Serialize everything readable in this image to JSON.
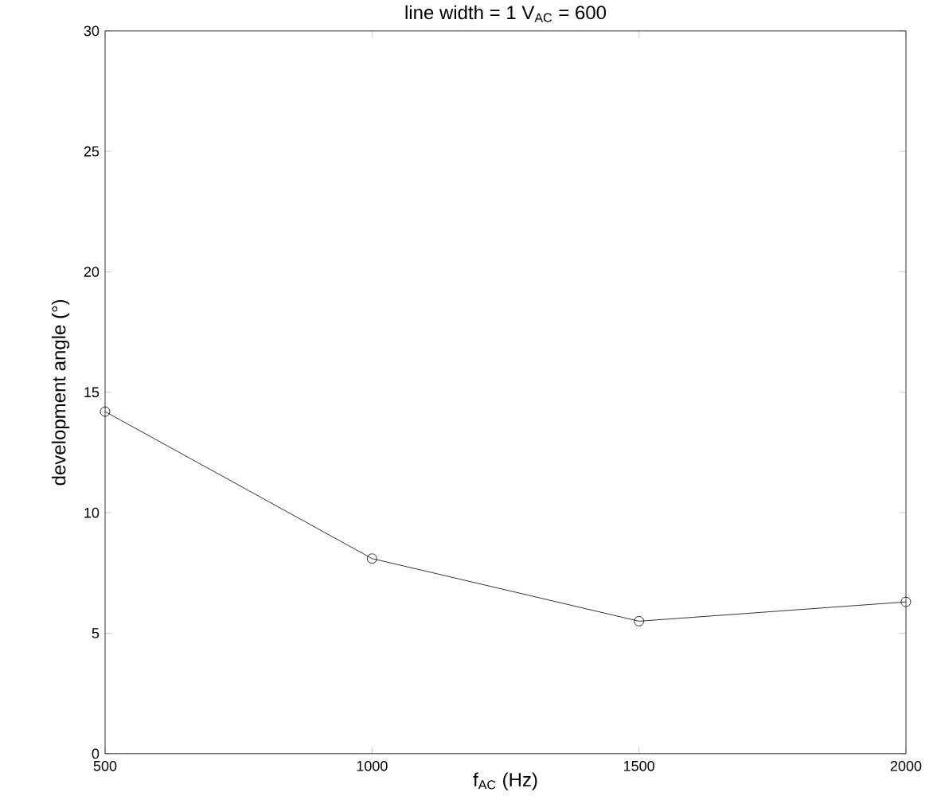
{
  "chart_data": {
    "type": "line",
    "title": "line width = 1          V$_{AC}$ = 600",
    "xlabel": "f$_{AC}$ (Hz)",
    "ylabel": "development angle (°)",
    "x": [
      500,
      1000,
      1500,
      2000
    ],
    "series": [
      {
        "color": "#000000",
        "values": [
          14.2,
          8.1,
          5.5,
          6.3
        ]
      }
    ],
    "xlim": [
      500,
      2000
    ],
    "ylim": [
      0,
      30
    ],
    "xticks": [
      500,
      1000,
      1500,
      2000
    ],
    "yticks": [
      0,
      5,
      10,
      15,
      20,
      25,
      30
    ],
    "marker": "circle",
    "line_style": "solid",
    "grid": false
  }
}
